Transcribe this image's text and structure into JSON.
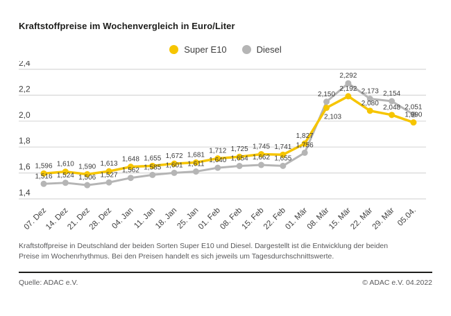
{
  "title": "Kraftstoffpreise im Wochenvergleich in Euro/Liter",
  "legend": [
    {
      "label": "Super E10",
      "color": "#f6c500"
    },
    {
      "label": "Diesel",
      "color": "#b5b5b5"
    }
  ],
  "chart_data": {
    "type": "line",
    "title": "Kraftstoffpreise im Wochenvergleich in Euro/Liter",
    "categories": [
      "07. Dez",
      "14. Dez",
      "21. Dez",
      "28. Dez",
      "04. Jan",
      "11. Jan",
      "18. Jan",
      "25. Jan",
      "01. Feb",
      "08. Feb",
      "15. Feb",
      "22. Feb",
      "01. Mär",
      "08. Mär",
      "15. Mär",
      "22. Mär",
      "29. Mär",
      "05.04."
    ],
    "series": [
      {
        "name": "Super E10",
        "color": "#f6c500",
        "values": [
          1.596,
          1.61,
          1.59,
          1.613,
          1.648,
          1.655,
          1.672,
          1.681,
          1.712,
          1.725,
          1.745,
          1.741,
          1.827,
          2.103,
          2.192,
          2.08,
          2.048,
          1.99
        ]
      },
      {
        "name": "Diesel",
        "color": "#b5b5b5",
        "values": [
          1.516,
          1.524,
          1.506,
          1.527,
          1.562,
          1.585,
          1.601,
          1.611,
          1.64,
          1.654,
          1.662,
          1.655,
          1.756,
          2.15,
          2.292,
          2.173,
          2.154,
          2.051
        ]
      }
    ],
    "xlabel": "",
    "ylabel": "",
    "ylim": [
      1.4,
      2.4
    ],
    "yticks": [
      "2,4",
      "2,2",
      "2,0",
      "1,8",
      "1,6",
      "1,4"
    ],
    "grid": true,
    "legend_position": "top-center",
    "x_tick_rotation": 45,
    "value_labels": true,
    "decimal_separator": ","
  },
  "footer": {
    "description": "Kraftstoffpreise in Deutschland der beiden Sorten Super E10 und Diesel. Dargestellt ist die Entwicklung der beiden Preise im Wochenrhythmus. Bei den Preisen handelt es sich jeweils um Tagesdurchschnittswerte.",
    "source": "Quelle: ADAC e.V.",
    "copyright": "© ADAC e.V. 04.2022"
  },
  "colors": {
    "grid": "#d8d8d8",
    "axis_text": "#3f3f3f",
    "value_label_text": "#3c3c3c",
    "divider": "#1d1d1b"
  }
}
